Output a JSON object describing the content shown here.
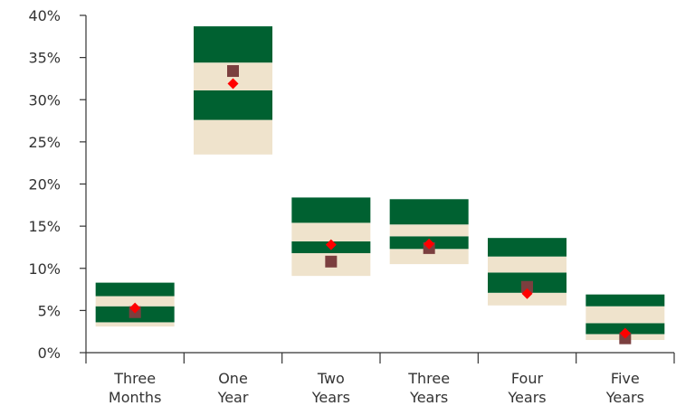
{
  "chart_data": {
    "type": "floating-bar",
    "title": "",
    "xlabel": "",
    "ylabel": "",
    "ylim": [
      0,
      40
    ],
    "yticks": [
      0,
      5,
      10,
      15,
      20,
      25,
      30,
      35,
      40
    ],
    "ytick_labels": [
      "0%",
      "5%",
      "10%",
      "15%",
      "20%",
      "25%",
      "30%",
      "35%",
      "40%"
    ],
    "grid": false,
    "legend": "none",
    "categories": [
      [
        "Three",
        "Months"
      ],
      [
        "One",
        "Year"
      ],
      [
        "Two",
        "Years"
      ],
      [
        "Three",
        "Years"
      ],
      [
        "Four",
        "Years"
      ],
      [
        "Five",
        "Years"
      ]
    ],
    "bands": [
      [
        {
          "from": 3.1,
          "to": 3.6,
          "color": "#efe3cc"
        },
        {
          "from": 3.6,
          "to": 5.5,
          "color": "#006131"
        },
        {
          "from": 5.5,
          "to": 6.7,
          "color": "#efe3cc"
        },
        {
          "from": 6.7,
          "to": 8.3,
          "color": "#006131"
        }
      ],
      [
        {
          "from": 23.5,
          "to": 27.6,
          "color": "#efe3cc"
        },
        {
          "from": 27.6,
          "to": 31.1,
          "color": "#006131"
        },
        {
          "from": 31.1,
          "to": 34.4,
          "color": "#efe3cc"
        },
        {
          "from": 34.4,
          "to": 38.7,
          "color": "#006131"
        }
      ],
      [
        {
          "from": 9.1,
          "to": 11.8,
          "color": "#efe3cc"
        },
        {
          "from": 11.8,
          "to": 13.2,
          "color": "#006131"
        },
        {
          "from": 13.2,
          "to": 15.4,
          "color": "#efe3cc"
        },
        {
          "from": 15.4,
          "to": 18.4,
          "color": "#006131"
        }
      ],
      [
        {
          "from": 10.5,
          "to": 12.3,
          "color": "#efe3cc"
        },
        {
          "from": 12.3,
          "to": 13.8,
          "color": "#006131"
        },
        {
          "from": 13.8,
          "to": 15.2,
          "color": "#efe3cc"
        },
        {
          "from": 15.2,
          "to": 18.2,
          "color": "#006131"
        }
      ],
      [
        {
          "from": 5.6,
          "to": 7.1,
          "color": "#efe3cc"
        },
        {
          "from": 7.1,
          "to": 9.5,
          "color": "#006131"
        },
        {
          "from": 9.5,
          "to": 11.4,
          "color": "#efe3cc"
        },
        {
          "from": 11.4,
          "to": 13.6,
          "color": "#006131"
        }
      ],
      [
        {
          "from": 1.5,
          "to": 2.2,
          "color": "#efe3cc"
        },
        {
          "from": 2.2,
          "to": 3.5,
          "color": "#006131"
        },
        {
          "from": 3.5,
          "to": 5.5,
          "color": "#efe3cc"
        },
        {
          "from": 5.5,
          "to": 6.9,
          "color": "#006131"
        }
      ]
    ],
    "square_values": [
      4.8,
      33.4,
      10.8,
      12.4,
      7.8,
      1.7
    ],
    "diamond_values": [
      5.3,
      31.9,
      12.8,
      12.9,
      7.0,
      2.3
    ],
    "colors": {
      "dark_band": "#006131",
      "light_band": "#efe3cc",
      "square": "#7b3f3f",
      "diamond": "#ff0000",
      "axis": "#333333"
    }
  }
}
